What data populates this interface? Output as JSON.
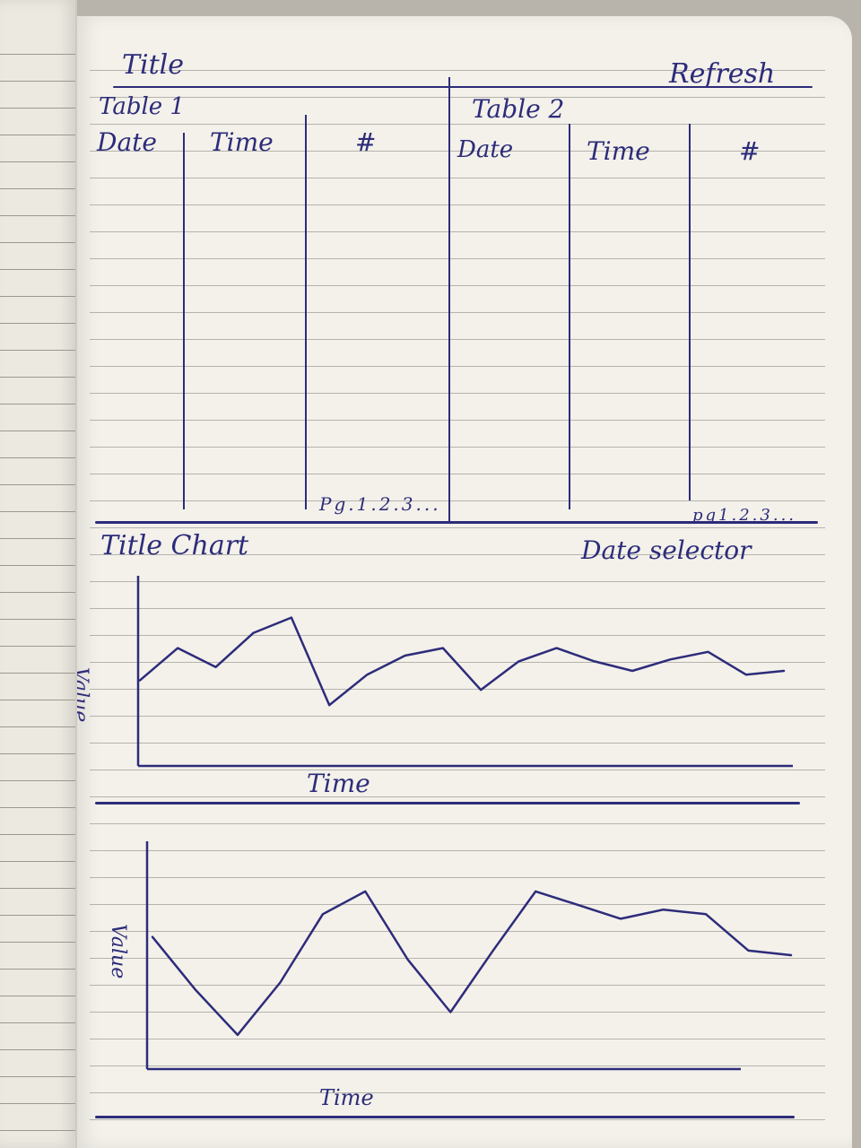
{
  "header": {
    "title": "Title",
    "refresh_label": "Refresh"
  },
  "table1": {
    "title": "Table 1",
    "columns": [
      "Date",
      "Time",
      "#"
    ],
    "rows": [],
    "pagination": "Pg.1.2.3..."
  },
  "table2": {
    "title": "Table 2",
    "columns": [
      "Date",
      "Time",
      "#"
    ],
    "rows": [],
    "pagination": "pg1.2.3..."
  },
  "chart_section": {
    "title": "Title Chart",
    "date_selector_label": "Date selector"
  },
  "chart_data": [
    {
      "type": "line",
      "title": "",
      "xlabel": "Time",
      "ylabel": "Value",
      "x": [
        0,
        1,
        2,
        3,
        4,
        5,
        6,
        7,
        8,
        9,
        10,
        11,
        12,
        13,
        14,
        15,
        16,
        17
      ],
      "series": [
        {
          "values": [
            0.45,
            0.62,
            0.52,
            0.7,
            0.78,
            0.32,
            0.48,
            0.58,
            0.62,
            0.4,
            0.55,
            0.62,
            0.55,
            0.5,
            0.56,
            0.6,
            0.48,
            0.5
          ]
        }
      ],
      "grid": false
    },
    {
      "type": "line",
      "title": "",
      "xlabel": "Time",
      "ylabel": "Value",
      "x": [
        0,
        1,
        2,
        3,
        4,
        5,
        6,
        7,
        8,
        9,
        10,
        11,
        12,
        13,
        14,
        15
      ],
      "series": [
        {
          "values": [
            0.58,
            0.35,
            0.15,
            0.38,
            0.68,
            0.78,
            0.48,
            0.25,
            0.52,
            0.78,
            0.72,
            0.66,
            0.7,
            0.68,
            0.52,
            0.5
          ]
        }
      ],
      "grid": false
    }
  ]
}
